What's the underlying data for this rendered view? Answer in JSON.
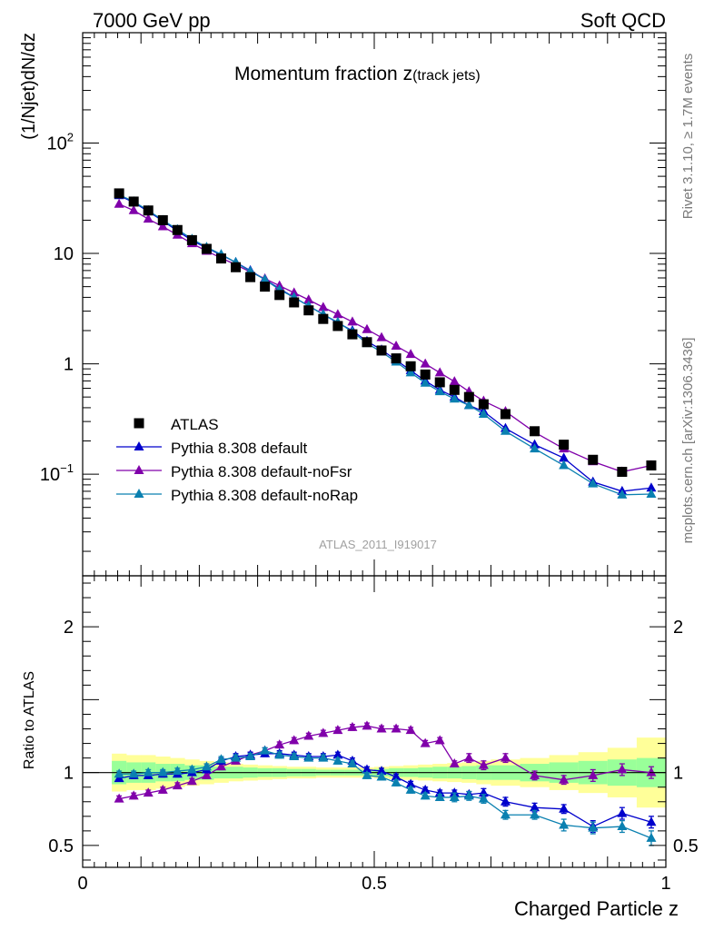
{
  "header": {
    "left": "7000 GeV pp",
    "right": "Soft QCD"
  },
  "side_labels": {
    "rivet": "Rivet 3.1.10, ≥ 1.7M events",
    "source": "mcplots.cern.ch [arXiv:1306.3436]"
  },
  "chart_data": [
    {
      "type": "scatter",
      "panel": "main",
      "title_main": "Momentum fraction z",
      "title_sub": "(track jets)",
      "ylabel": "(1/Njet)dN/dz",
      "yscale": "log",
      "ylim": [
        0.012,
        1000
      ],
      "xlim": [
        0,
        1
      ],
      "yticks": [
        {
          "v": 100,
          "t": "10",
          "sup": "2"
        },
        {
          "v": 10,
          "t": "10",
          "sup": ""
        },
        {
          "v": 1,
          "t": "1",
          "sup": ""
        },
        {
          "v": 0.1,
          "t": "10",
          "sup": "−1"
        }
      ],
      "watermark": "ATLAS_2011_I919017",
      "x": [
        0.0625,
        0.0875,
        0.1125,
        0.1375,
        0.1625,
        0.1875,
        0.2125,
        0.2375,
        0.2625,
        0.2875,
        0.3125,
        0.3375,
        0.3625,
        0.3875,
        0.4125,
        0.4375,
        0.4625,
        0.4875,
        0.5125,
        0.5375,
        0.5625,
        0.5875,
        0.6125,
        0.6375,
        0.6625,
        0.6875,
        0.725,
        0.775,
        0.825,
        0.875,
        0.925,
        0.975
      ],
      "series": [
        {
          "name": "ATLAS",
          "color": "#000000",
          "marker": "square",
          "values": [
            35,
            29.5,
            24.5,
            20,
            16.3,
            13.2,
            11,
            9.0,
            7.5,
            6.1,
            5.0,
            4.2,
            3.6,
            3.05,
            2.55,
            2.2,
            1.85,
            1.57,
            1.32,
            1.12,
            0.95,
            0.8,
            0.68,
            0.58,
            0.5,
            0.43,
            0.35,
            0.245,
            0.185,
            0.135,
            0.105,
            0.12
          ]
        },
        {
          "name": "Pythia 8.308 default",
          "color": "#0000cc",
          "marker": "triangle",
          "values": [
            33.5,
            29,
            24,
            19.7,
            16,
            13.1,
            11.2,
            9.7,
            8.3,
            7.0,
            5.8,
            4.8,
            4.0,
            3.35,
            2.8,
            2.35,
            2.0,
            1.6,
            1.34,
            1.08,
            0.87,
            0.7,
            0.58,
            0.5,
            0.42,
            0.37,
            0.26,
            0.185,
            0.14,
            0.085,
            0.07,
            0.075
          ]
        },
        {
          "name": "Pythia 8.308 default-noFsr",
          "color": "#8000aa",
          "marker": "triangle",
          "values": [
            28,
            24.5,
            20.5,
            17.5,
            14.7,
            12.3,
            10.5,
            9.1,
            7.9,
            6.8,
            5.9,
            5.1,
            4.4,
            3.8,
            3.25,
            2.8,
            2.4,
            2.05,
            1.73,
            1.45,
            1.22,
            1.0,
            0.83,
            0.69,
            0.56,
            0.46,
            0.37,
            0.24,
            0.17,
            0.13,
            0.105,
            0.12
          ]
        },
        {
          "name": "Pythia 8.308 default-noRap",
          "color": "#0a80b0",
          "marker": "triangle",
          "values": [
            34,
            29.5,
            24.5,
            20,
            16.5,
            13.5,
            11.4,
            9.8,
            8.3,
            6.9,
            5.8,
            4.7,
            4.0,
            3.35,
            2.8,
            2.38,
            1.95,
            1.53,
            1.28,
            1.04,
            0.83,
            0.67,
            0.56,
            0.48,
            0.42,
            0.35,
            0.245,
            0.17,
            0.12,
            0.082,
            0.065,
            0.066
          ]
        }
      ]
    },
    {
      "type": "scatter",
      "panel": "ratio",
      "ylabel": "Ratio to ATLAS",
      "xlabel": "Charged Particle z",
      "ylim": [
        0.35,
        2.35
      ],
      "xlim": [
        0,
        1
      ],
      "yticks": [
        {
          "v": 2,
          "t": "2"
        },
        {
          "v": 1,
          "t": "1"
        },
        {
          "v": 0.5,
          "t": "0.5"
        }
      ],
      "xticks": [
        {
          "v": 0,
          "t": "0"
        },
        {
          "v": 0.5,
          "t": "0.5"
        },
        {
          "v": 1,
          "t": "1"
        }
      ],
      "band_edges": [
        0.05,
        0.075,
        0.1,
        0.125,
        0.15,
        0.175,
        0.2,
        0.225,
        0.25,
        0.275,
        0.3,
        0.325,
        0.35,
        0.375,
        0.4,
        0.425,
        0.45,
        0.475,
        0.5,
        0.525,
        0.55,
        0.575,
        0.6,
        0.625,
        0.65,
        0.675,
        0.7,
        0.75,
        0.8,
        0.85,
        0.9,
        0.95,
        1.0
      ],
      "band_inner": [
        0.08,
        0.07,
        0.07,
        0.06,
        0.06,
        0.05,
        0.05,
        0.04,
        0.04,
        0.035,
        0.03,
        0.03,
        0.025,
        0.025,
        0.02,
        0.02,
        0.02,
        0.02,
        0.025,
        0.03,
        0.03,
        0.035,
        0.04,
        0.04,
        0.045,
        0.05,
        0.05,
        0.06,
        0.07,
        0.08,
        0.09,
        0.1
      ],
      "band_outer": [
        0.13,
        0.12,
        0.12,
        0.11,
        0.1,
        0.09,
        0.08,
        0.07,
        0.06,
        0.055,
        0.05,
        0.045,
        0.04,
        0.04,
        0.035,
        0.035,
        0.035,
        0.035,
        0.04,
        0.045,
        0.05,
        0.055,
        0.06,
        0.065,
        0.07,
        0.08,
        0.09,
        0.1,
        0.12,
        0.14,
        0.17,
        0.24
      ],
      "x": [
        0.0625,
        0.0875,
        0.1125,
        0.1375,
        0.1625,
        0.1875,
        0.2125,
        0.2375,
        0.2625,
        0.2875,
        0.3125,
        0.3375,
        0.3625,
        0.3875,
        0.4125,
        0.4375,
        0.4625,
        0.4875,
        0.5125,
        0.5375,
        0.5625,
        0.5875,
        0.6125,
        0.6375,
        0.6625,
        0.6875,
        0.725,
        0.775,
        0.825,
        0.875,
        0.925,
        0.975
      ],
      "series": [
        {
          "name": "Pythia 8.308 default",
          "color": "#0000cc",
          "values": [
            0.96,
            0.98,
            0.98,
            0.99,
            0.99,
            1.0,
            1.02,
            1.08,
            1.11,
            1.12,
            1.13,
            1.13,
            1.12,
            1.11,
            1.11,
            1.12,
            1.08,
            1.02,
            1.01,
            0.97,
            0.92,
            0.88,
            0.86,
            0.86,
            0.85,
            0.86,
            0.8,
            0.76,
            0.75,
            0.63,
            0.72,
            0.66
          ],
          "err": [
            0.02,
            0.02,
            0.02,
            0.02,
            0.02,
            0.02,
            0.02,
            0.02,
            0.02,
            0.02,
            0.02,
            0.02,
            0.02,
            0.02,
            0.02,
            0.02,
            0.02,
            0.02,
            0.02,
            0.02,
            0.02,
            0.02,
            0.02,
            0.02,
            0.02,
            0.03,
            0.03,
            0.03,
            0.03,
            0.04,
            0.04,
            0.04
          ]
        },
        {
          "name": "Pythia 8.308 default-noFsr",
          "color": "#8000aa",
          "values": [
            0.82,
            0.84,
            0.86,
            0.88,
            0.91,
            0.94,
            0.98,
            1.04,
            1.08,
            1.12,
            1.15,
            1.19,
            1.22,
            1.25,
            1.27,
            1.29,
            1.31,
            1.32,
            1.3,
            1.3,
            1.29,
            1.2,
            1.22,
            1.06,
            1.1,
            1.05,
            1.1,
            0.98,
            0.95,
            0.98,
            1.02,
            1.0
          ],
          "err": [
            0.02,
            0.02,
            0.02,
            0.02,
            0.02,
            0.02,
            0.02,
            0.02,
            0.02,
            0.02,
            0.02,
            0.02,
            0.02,
            0.02,
            0.02,
            0.02,
            0.02,
            0.02,
            0.02,
            0.02,
            0.02,
            0.02,
            0.02,
            0.02,
            0.03,
            0.03,
            0.03,
            0.03,
            0.03,
            0.04,
            0.04,
            0.04
          ]
        },
        {
          "name": "Pythia 8.308 default-noRap",
          "color": "#0a80b0",
          "values": [
            0.99,
            0.99,
            1.0,
            1.0,
            1.01,
            1.02,
            1.04,
            1.09,
            1.1,
            1.11,
            1.15,
            1.12,
            1.11,
            1.1,
            1.1,
            1.08,
            1.06,
            0.98,
            0.97,
            0.93,
            0.88,
            0.84,
            0.83,
            0.83,
            0.84,
            0.82,
            0.71,
            0.71,
            0.64,
            0.62,
            0.63,
            0.55
          ],
          "err": [
            0.02,
            0.02,
            0.02,
            0.02,
            0.02,
            0.02,
            0.02,
            0.02,
            0.02,
            0.02,
            0.02,
            0.02,
            0.02,
            0.02,
            0.02,
            0.02,
            0.02,
            0.02,
            0.02,
            0.02,
            0.02,
            0.02,
            0.02,
            0.03,
            0.03,
            0.03,
            0.03,
            0.03,
            0.04,
            0.04,
            0.04,
            0.05
          ]
        }
      ]
    }
  ]
}
